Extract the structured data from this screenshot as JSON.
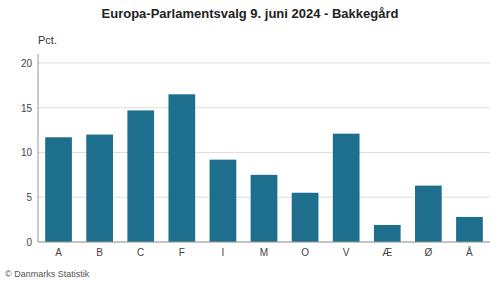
{
  "chart_data": {
    "type": "bar",
    "title": "Europa-Parlamentsvalg 9. juni 2024 - Bakkegård",
    "ylabel": "Pct.",
    "footer": "© Danmarks Statistik",
    "categories": [
      "A",
      "B",
      "C",
      "F",
      "I",
      "M",
      "O",
      "V",
      "Æ",
      "Ø",
      "Å"
    ],
    "values": [
      11.7,
      12.0,
      14.7,
      16.5,
      9.2,
      7.5,
      5.5,
      12.1,
      1.9,
      6.3,
      2.8
    ],
    "color": "#1e6e8e",
    "ylim": [
      0,
      21
    ],
    "yticks": [
      0,
      5,
      10,
      15,
      20
    ],
    "grid": true
  }
}
